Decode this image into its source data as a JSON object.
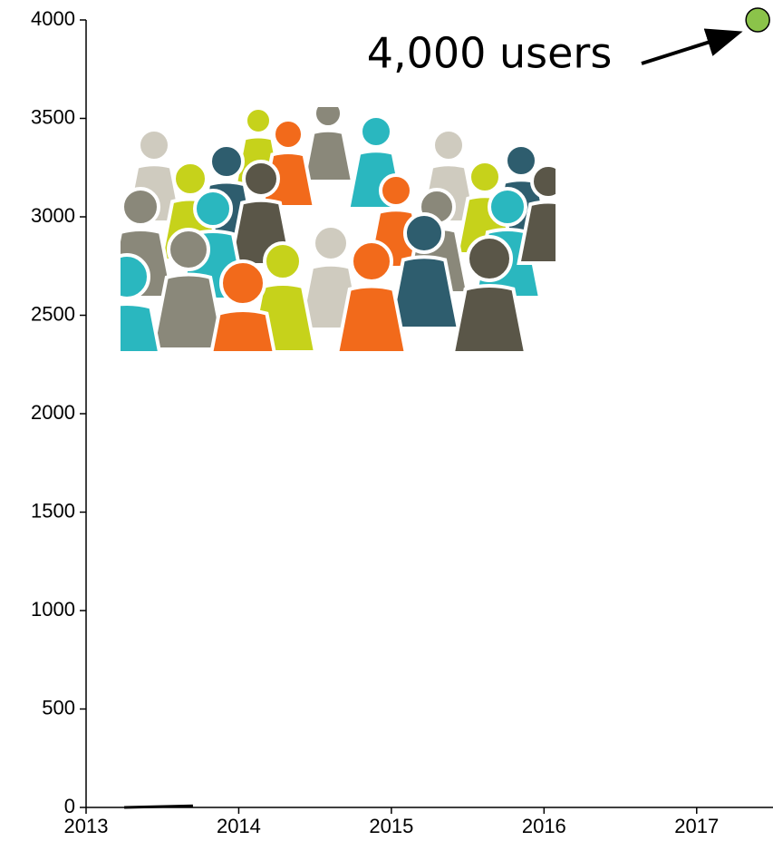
{
  "chart_data": {
    "type": "line",
    "annotation": "4,000 users",
    "x": [
      2013.25,
      2013.7
    ],
    "values": [
      0,
      8
    ],
    "color": "#000000",
    "marker": {
      "x": 2017.4,
      "y": 4000,
      "color": "#8bc34a"
    },
    "xlim": [
      2013,
      2017.5
    ],
    "xticks": [
      2013,
      2014,
      2015,
      2016,
      2017
    ],
    "ylim": [
      0,
      4000
    ],
    "yticks": [
      0,
      500,
      1000,
      1500,
      2000,
      2500,
      3000,
      3500,
      4000
    ]
  }
}
